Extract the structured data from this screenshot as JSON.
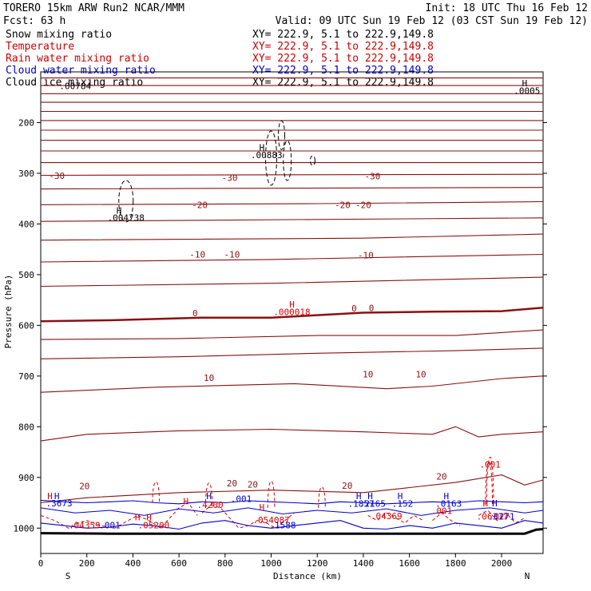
{
  "header": {
    "title": "TORERO  15km ARW   Run2    NCAR/MMM",
    "init": "Init: 18 UTC Thu 16 Feb 12",
    "fcst": "Fcst:    63 h",
    "valid": "Valid: 09 UTC Sun 19 Feb 12 (03 CST Sun 19 Feb 12)"
  },
  "legend": [
    {
      "name": "Snow mixing ratio",
      "color": "#000000",
      "xy": "XY= 222.9,  5.1 to 222.9,149.8"
    },
    {
      "name": "Temperature",
      "color": "#cc0000",
      "xy": "XY= 222.9,  5.1 to 222.9,149.8"
    },
    {
      "name": "Rain water mixing ratio",
      "color": "#cc0000",
      "xy": "XY= 222.9,  5.1 to 222.9,149.8"
    },
    {
      "name": "Cloud water mixing ratio",
      "color": "#0000cc",
      "xy": "XY= 222.9,  5.1 to 222.9,149.8"
    },
    {
      "name": "Cloud ice mixing ratio",
      "color": "#000000",
      "xy": "XY= 222.9,  5.1 to 222.9,149.8"
    }
  ],
  "chart_data": {
    "type": "contour-cross-section",
    "xlabel": "Distance (km)",
    "ylabel": "Pressure (hPa)",
    "xlim": [
      0,
      2180
    ],
    "ylim": [
      1050,
      100
    ],
    "x_ticks": [
      0,
      200,
      400,
      600,
      800,
      1000,
      1200,
      1400,
      1600,
      1800,
      2000
    ],
    "y_ticks": [
      200,
      300,
      400,
      500,
      600,
      700,
      800,
      900,
      1000
    ],
    "x_end_labels": {
      "left": "S",
      "right": "N"
    },
    "colors": {
      "temp": "#8b1010",
      "rain": "#dd0000",
      "cloud": "#0000cc",
      "snow": "#000000",
      "ground": "#000000"
    },
    "temperature_contours": [
      {
        "x": [
          0,
          2180
        ],
        "p": [
          112,
          112
        ]
      },
      {
        "x": [
          0,
          2180
        ],
        "p": [
          127,
          127
        ]
      },
      {
        "x": [
          0,
          2180
        ],
        "p": [
          143,
          143
        ]
      },
      {
        "x": [
          0,
          2180
        ],
        "p": [
          160,
          160
        ]
      },
      {
        "x": [
          0,
          2180
        ],
        "p": [
          178,
          178
        ]
      },
      {
        "x": [
          0,
          2180
        ],
        "p": [
          196,
          196
        ]
      },
      {
        "x": [
          0,
          2180
        ],
        "p": [
          215,
          215
        ]
      },
      {
        "x": [
          0,
          2180
        ],
        "p": [
          235,
          235
        ]
      },
      {
        "x": [
          0,
          2180
        ],
        "p": [
          256,
          256
        ]
      },
      {
        "x": [
          0,
          2180
        ],
        "p": [
          279,
          279
        ]
      },
      {
        "x": [
          0,
          2180
        ],
        "p": [
          304,
          302
        ]
      },
      {
        "x": [
          0,
          2180
        ],
        "p": [
          331,
          328
        ]
      },
      {
        "x": [
          0,
          1200,
          2180
        ],
        "p": [
          362,
          360,
          356
        ]
      },
      {
        "x": [
          0,
          2180
        ],
        "p": [
          395,
          388
        ]
      },
      {
        "x": [
          0,
          1400,
          2180
        ],
        "p": [
          432,
          428,
          420
        ]
      },
      {
        "x": [
          0,
          1000,
          2180
        ],
        "p": [
          475,
          470,
          460
        ]
      },
      {
        "x": [
          0,
          1000,
          2180
        ],
        "p": [
          523,
          517,
          505
        ]
      },
      {
        "x": [
          0,
          300,
          700,
          1000,
          1400,
          1700,
          2000,
          2180
        ],
        "p": [
          592,
          590,
          585,
          585,
          575,
          573,
          572,
          565
        ],
        "bold": true
      },
      {
        "x": [
          0,
          600,
          1200,
          1800,
          2180
        ],
        "p": [
          628,
          626,
          620,
          620,
          609
        ]
      },
      {
        "x": [
          0,
          600,
          1200,
          1800,
          2180
        ],
        "p": [
          666,
          662,
          655,
          650,
          645
        ]
      },
      {
        "x": [
          0,
          500,
          1100,
          1500,
          1700,
          2000,
          2180
        ],
        "p": [
          732,
          722,
          715,
          725,
          720,
          705,
          700
        ]
      },
      {
        "x": [
          0,
          200,
          600,
          1000,
          1400,
          1700,
          1800,
          1900,
          2000,
          2180
        ],
        "p": [
          828,
          815,
          808,
          805,
          810,
          815,
          800,
          820,
          815,
          810
        ]
      },
      {
        "x": [
          0,
          200,
          600,
          1000,
          1400,
          1600,
          1800,
          2000,
          2100,
          2180
        ],
        "p": [
          950,
          940,
          930,
          925,
          930,
          920,
          910,
          895,
          915,
          905
        ]
      }
    ],
    "temperature_labels": [
      {
        "text": "-30",
        "x": 70,
        "p": 311
      },
      {
        "text": "-30",
        "x": 820,
        "p": 315
      },
      {
        "text": "-30",
        "x": 1440,
        "p": 312
      },
      {
        "text": "-20",
        "x": 690,
        "p": 369
      },
      {
        "text": "-20",
        "x": 1310,
        "p": 369
      },
      {
        "text": "-20",
        "x": 1400,
        "p": 369
      },
      {
        "text": "-10",
        "x": 680,
        "p": 466
      },
      {
        "text": "-10",
        "x": 830,
        "p": 466
      },
      {
        "text": "-10",
        "x": 1410,
        "p": 468
      },
      {
        "text": "0",
        "x": 670,
        "p": 582
      },
      {
        "text": "0",
        "x": 1360,
        "p": 573
      },
      {
        "text": "0",
        "x": 1435,
        "p": 572
      },
      {
        "text": "10",
        "x": 730,
        "p": 710
      },
      {
        "text": "10",
        "x": 1420,
        "p": 703
      },
      {
        "text": "10",
        "x": 1650,
        "p": 703
      },
      {
        "text": "20",
        "x": 190,
        "p": 923
      },
      {
        "text": "20",
        "x": 830,
        "p": 918
      },
      {
        "text": "20",
        "x": 920,
        "p": 920
      },
      {
        "text": "20",
        "x": 1330,
        "p": 922
      },
      {
        "text": "20",
        "x": 1740,
        "p": 904
      }
    ],
    "snow_labels": [
      {
        "text": "H",
        "x": 960,
        "p": 255
      },
      {
        "text": ".00883",
        "x": 980,
        "p": 270
      },
      {
        "text": "H",
        "x": 340,
        "p": 380
      },
      {
        "text": ".004738",
        "x": 370,
        "p": 394
      },
      {
        "text": ".00784",
        "x": 150,
        "p": 134
      },
      {
        "text": "H",
        "x": 2100,
        "p": 128
      },
      {
        "text": ".0005",
        "x": 2110,
        "p": 143
      }
    ],
    "rain_labels": [
      {
        "text": "H",
        "x": 1090,
        "p": 565
      },
      {
        "text": ".000018",
        "x": 1090,
        "p": 580
      },
      {
        "text": ".001",
        "x": 1950,
        "p": 881
      },
      {
        "text": "H",
        "x": 40,
        "p": 943
      },
      {
        "text": "H",
        "x": 630,
        "p": 953
      },
      {
        "text": "H",
        "x": 960,
        "p": 965
      },
      {
        "text": "H",
        "x": 420,
        "p": 985
      },
      {
        "text": "H",
        "x": 470,
        "p": 985
      },
      {
        "text": "H",
        "x": 1930,
        "p": 957
      },
      {
        "text": ".04359",
        "x": 190,
        "p": 1000
      },
      {
        "text": ".05200",
        "x": 490,
        "p": 1000
      },
      {
        "text": ".054087",
        "x": 1000,
        "p": 990
      },
      {
        "text": ".04369",
        "x": 1500,
        "p": 982
      },
      {
        "text": ".001",
        "x": 1740,
        "p": 972
      },
      {
        "text": ".06337",
        "x": 1960,
        "p": 983
      },
      {
        "text": ".4200",
        "x": 735,
        "p": 960
      }
    ],
    "cloud_labels": [
      {
        "text": "H",
        "x": 70,
        "p": 943
      },
      {
        "text": ".3673",
        "x": 80,
        "p": 957
      },
      {
        "text": "H",
        "x": 730,
        "p": 943
      },
      {
        "text": ".001",
        "x": 870,
        "p": 948
      },
      {
        "text": "H",
        "x": 1380,
        "p": 943
      },
      {
        "text": ".1857",
        "x": 1390,
        "p": 958
      },
      {
        "text": "H",
        "x": 1430,
        "p": 943
      },
      {
        "text": ".2165",
        "x": 1440,
        "p": 958
      },
      {
        "text": "H",
        "x": 1560,
        "p": 943
      },
      {
        "text": ".152",
        "x": 1570,
        "p": 958
      },
      {
        "text": "H",
        "x": 1760,
        "p": 943
      },
      {
        "text": ".0163",
        "x": 1770,
        "p": 958
      },
      {
        "text": "H",
        "x": 1970,
        "p": 957
      },
      {
        "text": ".0271",
        "x": 2000,
        "p": 983
      },
      {
        "text": ".1588",
        "x": 1050,
        "p": 1000
      },
      {
        "text": ".001",
        "x": 300,
        "p": 1000
      }
    ]
  }
}
